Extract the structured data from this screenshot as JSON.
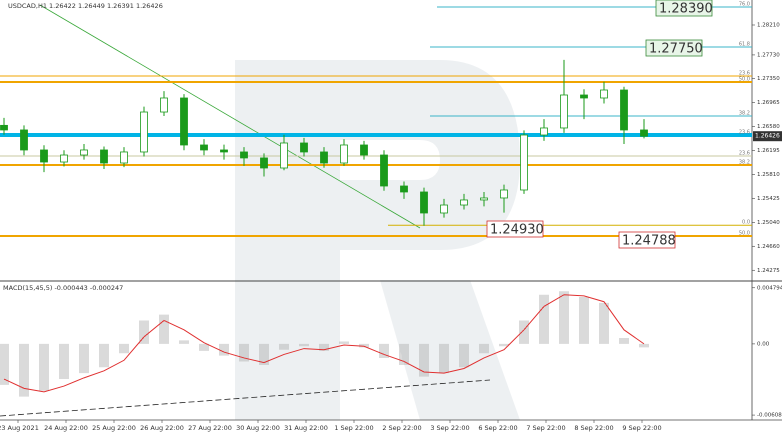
{
  "chart_data": [
    {
      "type": "candlestick",
      "title": "USDCAD,H1",
      "quote": [
        1.26422,
        1.26449,
        1.26391,
        1.26426
      ],
      "x": [
        2,
        12,
        22,
        32,
        42,
        52,
        62,
        72,
        82,
        92,
        102,
        112,
        122,
        132,
        142,
        152,
        162,
        172,
        182,
        192,
        202,
        212,
        222,
        232,
        242,
        252,
        262,
        272,
        282,
        292,
        302,
        312,
        322
      ],
      "open": [
        1.266,
        1.26526,
        1.26205,
        1.26012,
        1.26124,
        1.26205,
        1.25996,
        1.26173,
        1.26814,
        1.27039,
        1.26285,
        1.26205,
        1.26173,
        1.26077,
        1.25916,
        1.26317,
        1.26173,
        1.25996,
        1.26285,
        1.26124,
        1.25627,
        1.25531,
        1.25194,
        1.25322,
        1.25403,
        1.25435,
        1.25563,
        1.26445,
        1.26558,
        1.27087,
        1.27039,
        1.27167,
        1.26526
      ],
      "high": [
        1.2672,
        1.266,
        1.2628,
        1.262,
        1.263,
        1.2626,
        1.2625,
        1.269,
        1.2715,
        1.271,
        1.2638,
        1.2629,
        1.2625,
        1.2615,
        1.2645,
        1.264,
        1.2625,
        1.2638,
        1.2635,
        1.262,
        1.257,
        1.256,
        1.2542,
        1.255,
        1.2553,
        1.2565,
        1.2652,
        1.267,
        1.2765,
        1.2718,
        1.273,
        1.2722,
        1.267
      ],
      "low": [
        1.2645,
        1.2612,
        1.2585,
        1.2594,
        1.2605,
        1.259,
        1.2593,
        1.261,
        1.2675,
        1.262,
        1.2612,
        1.2605,
        1.2595,
        1.2578,
        1.2588,
        1.261,
        1.2592,
        1.2595,
        1.2605,
        1.2555,
        1.2542,
        1.2499,
        1.2512,
        1.2525,
        1.253,
        1.252,
        1.255,
        1.2635,
        1.2648,
        1.267,
        1.2695,
        1.263,
        1.26391
      ],
      "close": [
        1.26526,
        1.26205,
        1.26012,
        1.26124,
        1.26205,
        1.25996,
        1.26173,
        1.26814,
        1.27039,
        1.26285,
        1.26205,
        1.26173,
        1.26077,
        1.25916,
        1.26317,
        1.26173,
        1.25996,
        1.26285,
        1.26124,
        1.25627,
        1.25531,
        1.25194,
        1.25322,
        1.25403,
        1.25435,
        1.25563,
        1.26445,
        1.26558,
        1.27087,
        1.27039,
        1.27167,
        1.26526,
        1.26426
      ],
      "color": "#1a9a1a",
      "xlim": [
        0,
        376
      ],
      "xticks": [
        {
          "value": 9,
          "label": "23 Aug 2021"
        },
        {
          "value": 33,
          "label": "24 Aug 22:00"
        },
        {
          "value": 57,
          "label": "25 Aug 22:00"
        },
        {
          "value": 81,
          "label": "26 Aug 22:00"
        },
        {
          "value": 105,
          "label": "27 Aug 22:00"
        },
        {
          "value": 129,
          "label": "30 Aug 22:00"
        },
        {
          "value": 153,
          "label": "31 Aug 22:00"
        },
        {
          "value": 177,
          "label": "1 Sep 22:00"
        },
        {
          "value": 201,
          "label": "2 Sep 22:00"
        },
        {
          "value": 225,
          "label": "3 Sep 22:00"
        },
        {
          "value": 249,
          "label": "6 Sep 22:00"
        },
        {
          "value": 273,
          "label": "7 Sep 22:00"
        },
        {
          "value": 297,
          "label": "8 Sep 22:00"
        },
        {
          "value": 321,
          "label": "9 Sep 22:00"
        }
      ],
      "ylim": [
        1.24119,
        1.28611
      ],
      "yticks": [
        {
          "value": 1.2821,
          "label": "1.28210"
        },
        {
          "value": 1.2773,
          "label": "1.27730"
        },
        {
          "value": 1.2735,
          "label": "1.27350"
        },
        1.26965,
        {
          "value": 1.2658,
          "label": "1.26580"
        },
        1.26195,
        {
          "value": 1.2581,
          "label": "1.25810"
        },
        1.25425,
        {
          "value": 1.2504,
          "label": "1.25040"
        },
        {
          "value": 1.2466,
          "label": "1.24660"
        },
        1.24275
      ],
      "levels": [
        {
          "value": 1.28499,
          "label": "76.0",
          "color": "#3bb4c8"
        },
        {
          "value": 1.27857,
          "label": "61.8",
          "color": "#3bb4c8"
        },
        {
          "value": 1.27392,
          "label": "23.6",
          "color": "#f0a500"
        },
        {
          "value": 1.27296,
          "label": "50.0",
          "color": "#f0a500"
        },
        {
          "value": 1.2675,
          "label": "38.2",
          "color": "#3bb4c8"
        },
        {
          "value": 1.26445,
          "label": "23.6",
          "color": "#00b4e6"
        },
        {
          "value": 1.26109,
          "label": "23.6",
          "color": "#c8c8a0"
        },
        {
          "value": 1.25964,
          "label": "38.2",
          "color": "#f0a500"
        },
        {
          "value": 1.24998,
          "label": "0.0",
          "color": "#d4b000"
        },
        {
          "value": 1.24825,
          "label": "50.0",
          "color": "#f0a500"
        }
      ],
      "targets": [
        "1.28390",
        "1.27750",
        "1.24930",
        "1.24788"
      ]
    },
    {
      "type": "macd",
      "title": "MACD(15,45,5)",
      "quote": [
        -0.000443,
        -0.000247
      ],
      "x": [
        2,
        12,
        22,
        32,
        42,
        52,
        62,
        72,
        82,
        92,
        102,
        112,
        122,
        132,
        142,
        152,
        162,
        172,
        182,
        192,
        202,
        212,
        222,
        232,
        242,
        252,
        262,
        272,
        282,
        292,
        302,
        312,
        322
      ],
      "values": [
        -0.0035,
        -0.0045,
        -0.004,
        -0.003,
        -0.0025,
        -0.002,
        -0.0008,
        0.002,
        0.0025,
        0.0003,
        -0.0006,
        -0.001,
        -0.0015,
        -0.0018,
        -0.0005,
        -0.0002,
        -0.0006,
        0.0002,
        -0.0003,
        -0.0012,
        -0.0018,
        -0.0028,
        -0.0025,
        -0.002,
        -0.0008,
        -0.0002,
        0.002,
        0.0042,
        0.0045,
        0.004,
        0.0035,
        0.0005,
        -0.0003
      ],
      "signal": [
        -0.003,
        -0.0038,
        -0.0041,
        -0.0036,
        -0.0029,
        -0.0023,
        -0.0014,
        0.0006,
        0.002,
        0.0012,
        0.0001,
        -0.0007,
        -0.0012,
        -0.0016,
        -0.0009,
        -0.0004,
        -0.0005,
        -0.0001,
        -0.0002,
        -0.0009,
        -0.0015,
        -0.0024,
        -0.0025,
        -0.0021,
        -0.0012,
        -0.0005,
        0.0012,
        0.0032,
        0.0042,
        0.0041,
        0.0036,
        0.0012,
        0.0
      ],
      "color": "#b4b4b4",
      "signal_color": "#e03030",
      "ylim": [
        -0.0065,
        0.0052
      ],
      "yticks": [
        0.004794,
        {
          "value": 0,
          "label": "0.00"
        },
        -0.00608
      ]
    }
  ]
}
